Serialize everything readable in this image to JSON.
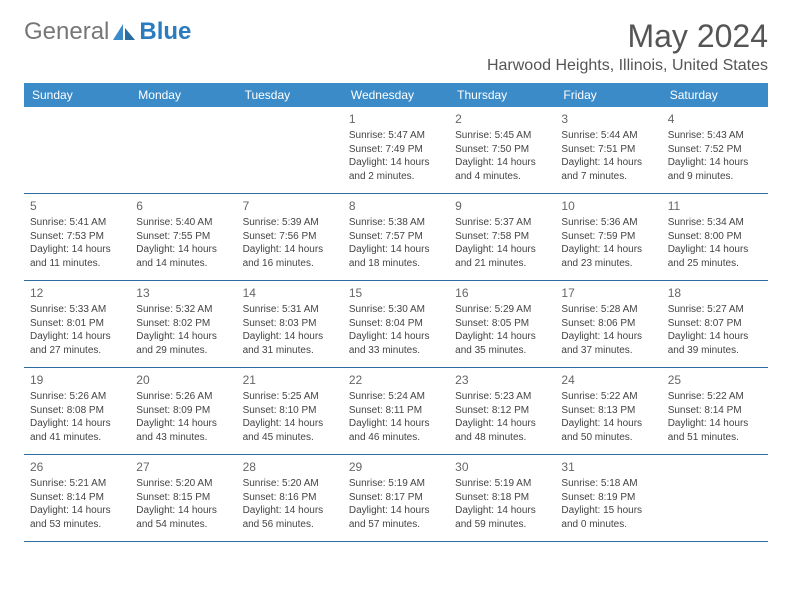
{
  "logo": {
    "general": "General",
    "blue": "Blue"
  },
  "title": "May 2024",
  "location": "Harwood Heights, Illinois, United States",
  "daynames": [
    "Sunday",
    "Monday",
    "Tuesday",
    "Wednesday",
    "Thursday",
    "Friday",
    "Saturday"
  ],
  "colors": {
    "header_bg": "#3b8bc9",
    "header_text": "#ffffff",
    "border": "#2b6ca3",
    "text": "#444444",
    "title": "#555555"
  },
  "weeks": [
    [
      {
        "num": "",
        "sunrise": "",
        "sunset": "",
        "daylight": ""
      },
      {
        "num": "",
        "sunrise": "",
        "sunset": "",
        "daylight": ""
      },
      {
        "num": "",
        "sunrise": "",
        "sunset": "",
        "daylight": ""
      },
      {
        "num": "1",
        "sunrise": "Sunrise: 5:47 AM",
        "sunset": "Sunset: 7:49 PM",
        "daylight": "Daylight: 14 hours and 2 minutes."
      },
      {
        "num": "2",
        "sunrise": "Sunrise: 5:45 AM",
        "sunset": "Sunset: 7:50 PM",
        "daylight": "Daylight: 14 hours and 4 minutes."
      },
      {
        "num": "3",
        "sunrise": "Sunrise: 5:44 AM",
        "sunset": "Sunset: 7:51 PM",
        "daylight": "Daylight: 14 hours and 7 minutes."
      },
      {
        "num": "4",
        "sunrise": "Sunrise: 5:43 AM",
        "sunset": "Sunset: 7:52 PM",
        "daylight": "Daylight: 14 hours and 9 minutes."
      }
    ],
    [
      {
        "num": "5",
        "sunrise": "Sunrise: 5:41 AM",
        "sunset": "Sunset: 7:53 PM",
        "daylight": "Daylight: 14 hours and 11 minutes."
      },
      {
        "num": "6",
        "sunrise": "Sunrise: 5:40 AM",
        "sunset": "Sunset: 7:55 PM",
        "daylight": "Daylight: 14 hours and 14 minutes."
      },
      {
        "num": "7",
        "sunrise": "Sunrise: 5:39 AM",
        "sunset": "Sunset: 7:56 PM",
        "daylight": "Daylight: 14 hours and 16 minutes."
      },
      {
        "num": "8",
        "sunrise": "Sunrise: 5:38 AM",
        "sunset": "Sunset: 7:57 PM",
        "daylight": "Daylight: 14 hours and 18 minutes."
      },
      {
        "num": "9",
        "sunrise": "Sunrise: 5:37 AM",
        "sunset": "Sunset: 7:58 PM",
        "daylight": "Daylight: 14 hours and 21 minutes."
      },
      {
        "num": "10",
        "sunrise": "Sunrise: 5:36 AM",
        "sunset": "Sunset: 7:59 PM",
        "daylight": "Daylight: 14 hours and 23 minutes."
      },
      {
        "num": "11",
        "sunrise": "Sunrise: 5:34 AM",
        "sunset": "Sunset: 8:00 PM",
        "daylight": "Daylight: 14 hours and 25 minutes."
      }
    ],
    [
      {
        "num": "12",
        "sunrise": "Sunrise: 5:33 AM",
        "sunset": "Sunset: 8:01 PM",
        "daylight": "Daylight: 14 hours and 27 minutes."
      },
      {
        "num": "13",
        "sunrise": "Sunrise: 5:32 AM",
        "sunset": "Sunset: 8:02 PM",
        "daylight": "Daylight: 14 hours and 29 minutes."
      },
      {
        "num": "14",
        "sunrise": "Sunrise: 5:31 AM",
        "sunset": "Sunset: 8:03 PM",
        "daylight": "Daylight: 14 hours and 31 minutes."
      },
      {
        "num": "15",
        "sunrise": "Sunrise: 5:30 AM",
        "sunset": "Sunset: 8:04 PM",
        "daylight": "Daylight: 14 hours and 33 minutes."
      },
      {
        "num": "16",
        "sunrise": "Sunrise: 5:29 AM",
        "sunset": "Sunset: 8:05 PM",
        "daylight": "Daylight: 14 hours and 35 minutes."
      },
      {
        "num": "17",
        "sunrise": "Sunrise: 5:28 AM",
        "sunset": "Sunset: 8:06 PM",
        "daylight": "Daylight: 14 hours and 37 minutes."
      },
      {
        "num": "18",
        "sunrise": "Sunrise: 5:27 AM",
        "sunset": "Sunset: 8:07 PM",
        "daylight": "Daylight: 14 hours and 39 minutes."
      }
    ],
    [
      {
        "num": "19",
        "sunrise": "Sunrise: 5:26 AM",
        "sunset": "Sunset: 8:08 PM",
        "daylight": "Daylight: 14 hours and 41 minutes."
      },
      {
        "num": "20",
        "sunrise": "Sunrise: 5:26 AM",
        "sunset": "Sunset: 8:09 PM",
        "daylight": "Daylight: 14 hours and 43 minutes."
      },
      {
        "num": "21",
        "sunrise": "Sunrise: 5:25 AM",
        "sunset": "Sunset: 8:10 PM",
        "daylight": "Daylight: 14 hours and 45 minutes."
      },
      {
        "num": "22",
        "sunrise": "Sunrise: 5:24 AM",
        "sunset": "Sunset: 8:11 PM",
        "daylight": "Daylight: 14 hours and 46 minutes."
      },
      {
        "num": "23",
        "sunrise": "Sunrise: 5:23 AM",
        "sunset": "Sunset: 8:12 PM",
        "daylight": "Daylight: 14 hours and 48 minutes."
      },
      {
        "num": "24",
        "sunrise": "Sunrise: 5:22 AM",
        "sunset": "Sunset: 8:13 PM",
        "daylight": "Daylight: 14 hours and 50 minutes."
      },
      {
        "num": "25",
        "sunrise": "Sunrise: 5:22 AM",
        "sunset": "Sunset: 8:14 PM",
        "daylight": "Daylight: 14 hours and 51 minutes."
      }
    ],
    [
      {
        "num": "26",
        "sunrise": "Sunrise: 5:21 AM",
        "sunset": "Sunset: 8:14 PM",
        "daylight": "Daylight: 14 hours and 53 minutes."
      },
      {
        "num": "27",
        "sunrise": "Sunrise: 5:20 AM",
        "sunset": "Sunset: 8:15 PM",
        "daylight": "Daylight: 14 hours and 54 minutes."
      },
      {
        "num": "28",
        "sunrise": "Sunrise: 5:20 AM",
        "sunset": "Sunset: 8:16 PM",
        "daylight": "Daylight: 14 hours and 56 minutes."
      },
      {
        "num": "29",
        "sunrise": "Sunrise: 5:19 AM",
        "sunset": "Sunset: 8:17 PM",
        "daylight": "Daylight: 14 hours and 57 minutes."
      },
      {
        "num": "30",
        "sunrise": "Sunrise: 5:19 AM",
        "sunset": "Sunset: 8:18 PM",
        "daylight": "Daylight: 14 hours and 59 minutes."
      },
      {
        "num": "31",
        "sunrise": "Sunrise: 5:18 AM",
        "sunset": "Sunset: 8:19 PM",
        "daylight": "Daylight: 15 hours and 0 minutes."
      },
      {
        "num": "",
        "sunrise": "",
        "sunset": "",
        "daylight": ""
      }
    ]
  ]
}
